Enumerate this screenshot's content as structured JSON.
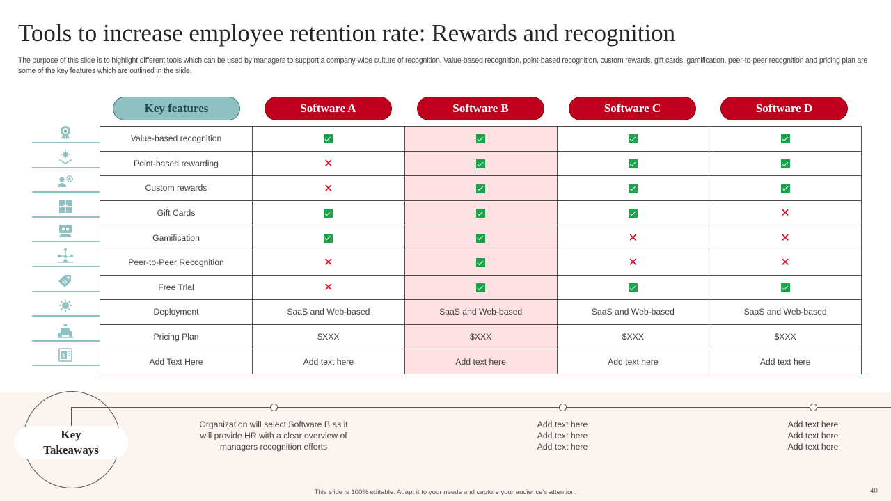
{
  "title": "Tools to increase employee retention rate: Rewards and recognition",
  "subtitle": "The purpose of this slide is to highlight different tools which can be used by managers to support a company-wide culture of recognition. Value-based recognition, point-based recognition, custom rewards, gift cards, gamification, peer-to-peer recognition and pricing plan are some of the key features which are outlined in the slide.",
  "headers": {
    "key": "Key features",
    "software": [
      "Software A",
      "Software B",
      "Software C",
      "Software D"
    ]
  },
  "rows": [
    {
      "feature": "Value-based recognition",
      "icon": "award-icon",
      "cells": [
        "check",
        "check",
        "check",
        "check"
      ]
    },
    {
      "feature": "Point-based rewarding",
      "icon": "hand-star-icon",
      "cells": [
        "cross",
        "check",
        "check",
        "check"
      ]
    },
    {
      "feature": "Custom rewards",
      "icon": "person-gear-icon",
      "cells": [
        "cross",
        "check",
        "check",
        "check"
      ]
    },
    {
      "feature": "Gift Cards",
      "icon": "gift-card-icon",
      "cells": [
        "check",
        "check",
        "check",
        "cross"
      ]
    },
    {
      "feature": "Gamification",
      "icon": "game-controller-icon",
      "cells": [
        "check",
        "check",
        "cross",
        "cross"
      ]
    },
    {
      "feature": "Peer-to-Peer Recognition",
      "icon": "people-network-icon",
      "cells": [
        "cross",
        "check",
        "cross",
        "cross"
      ]
    },
    {
      "feature": "Free Trial",
      "icon": "price-tag-icon",
      "cells": [
        "cross",
        "check",
        "check",
        "check"
      ]
    },
    {
      "feature": "Deployment",
      "icon": "cloud-gear-icon",
      "cells": [
        "SaaS and Web-based",
        "SaaS and Web-based",
        "SaaS and Web-based",
        "SaaS and Web-based"
      ]
    },
    {
      "feature": "Pricing Plan",
      "icon": "money-bag-icon",
      "cells": [
        "$XXX",
        "$XXX",
        "$XXX",
        "$XXX"
      ]
    },
    {
      "feature": "Add Text Here",
      "icon": "calculator-icon",
      "cells": [
        "Add text here",
        "Add text here",
        "Add text here",
        "Add text here"
      ]
    }
  ],
  "takeaways": {
    "label_line1": "Key",
    "label_line2": "Takeaways",
    "notes": [
      [
        "Organization will select Software B as it",
        "will provide HR with a clear overview of",
        "managers recognition efforts"
      ],
      [
        "Add text here",
        "Add text here",
        "Add text here"
      ],
      [
        "Add text here",
        "Add text here",
        "Add text here"
      ]
    ]
  },
  "footer": "This slide is 100% editable. Adapt it to your needs and capture your audience's attention.",
  "page_number": "40",
  "colors": {
    "accent": "#c0001d",
    "teal": "#8fc1c3",
    "highlight": "#fde1e3",
    "check": "#1aa34a",
    "cross": "#d7001e"
  }
}
